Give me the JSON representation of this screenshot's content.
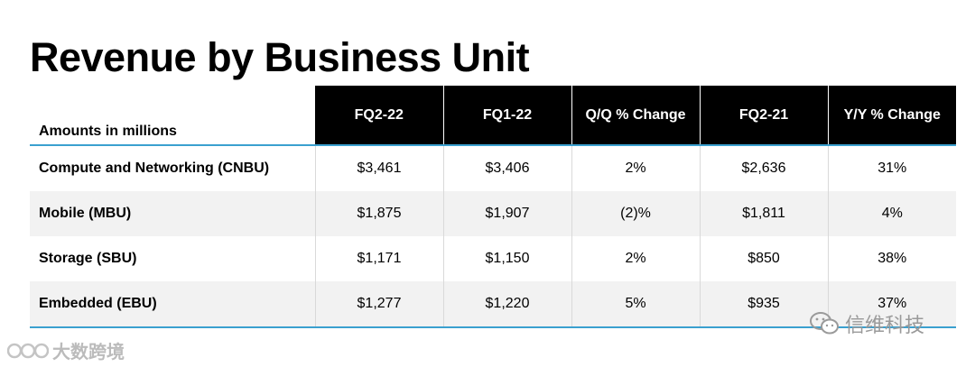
{
  "title": "Revenue by Business Unit",
  "table": {
    "header_label": "Amounts in millions",
    "columns": [
      "FQ2-22",
      "FQ1-22",
      "Q/Q % Change",
      "FQ2-21",
      "Y/Y % Change"
    ],
    "rows": [
      {
        "name": "Compute and Networking (CNBU)",
        "cells": [
          "$3,461",
          "$3,406",
          "2%",
          "$2,636",
          "31%"
        ]
      },
      {
        "name": "Mobile (MBU)",
        "cells": [
          "$1,875",
          "$1,907",
          "(2)%",
          "$1,811",
          "4%"
        ]
      },
      {
        "name": "Storage (SBU)",
        "cells": [
          "$1,171",
          "$1,150",
          "2%",
          "$850",
          "38%"
        ]
      },
      {
        "name": "Embedded (EBU)",
        "cells": [
          "$1,277",
          "$1,220",
          "5%",
          "$935",
          "37%"
        ]
      }
    ]
  },
  "watermarks": {
    "left_text": "大数跨境",
    "right_text": "信维科技"
  },
  "colors": {
    "header_bg": "#000000",
    "rule": "#3aa0cf",
    "alt_row": "#f2f2f2"
  }
}
